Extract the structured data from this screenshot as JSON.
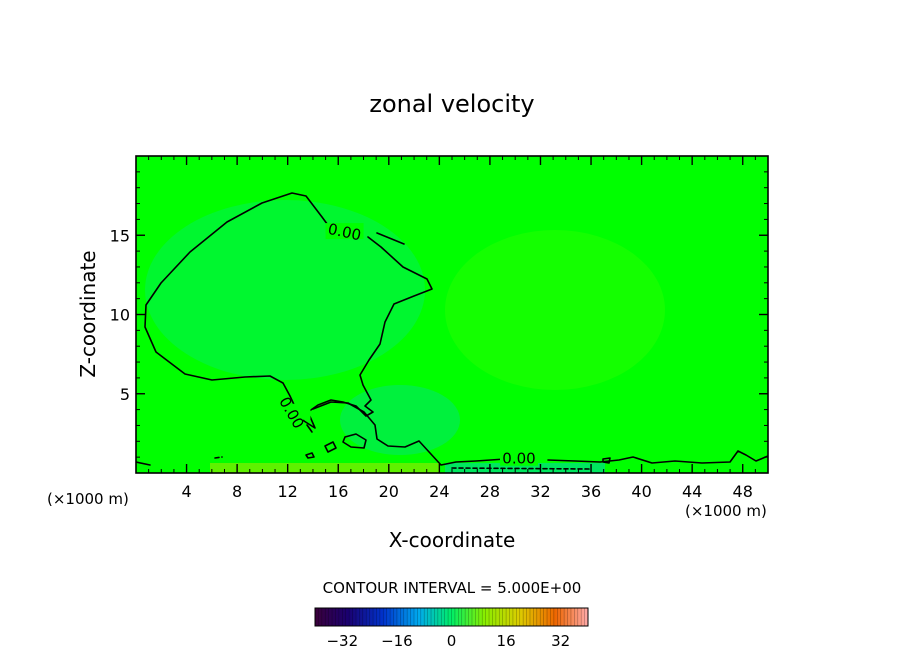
{
  "chart_data": {
    "type": "contour",
    "title": "zonal velocity",
    "xlabel": "X-coordinate",
    "ylabel": "Z-coordinate",
    "x_unit_left": "(×1000 m)",
    "x_unit_right": "(×1000 m)",
    "xlim": [
      0,
      50
    ],
    "ylim": [
      0,
      20
    ],
    "xticks": [
      4,
      8,
      12,
      16,
      20,
      24,
      28,
      32,
      36,
      40,
      44,
      48
    ],
    "yticks": [
      5,
      10,
      15
    ],
    "contour_labels": [
      {
        "text": "0.00",
        "x": 16.5,
        "z": 15.2
      },
      {
        "text": "0.00",
        "x": 12.3,
        "z": 3.8
      },
      {
        "text": "0.00",
        "x": 30.3,
        "z": 0.9
      }
    ],
    "contour_interval_text": "CONTOUR INTERVAL = 5.000E+00",
    "colorbar": {
      "min": -40,
      "max": 40,
      "ticks": [
        -32,
        -16,
        0,
        16,
        32
      ],
      "tick_labels": [
        "−32",
        "−16",
        "0",
        "16",
        "32"
      ]
    }
  },
  "colors": {
    "background": "#00ff00",
    "contour_line": "#000000"
  }
}
